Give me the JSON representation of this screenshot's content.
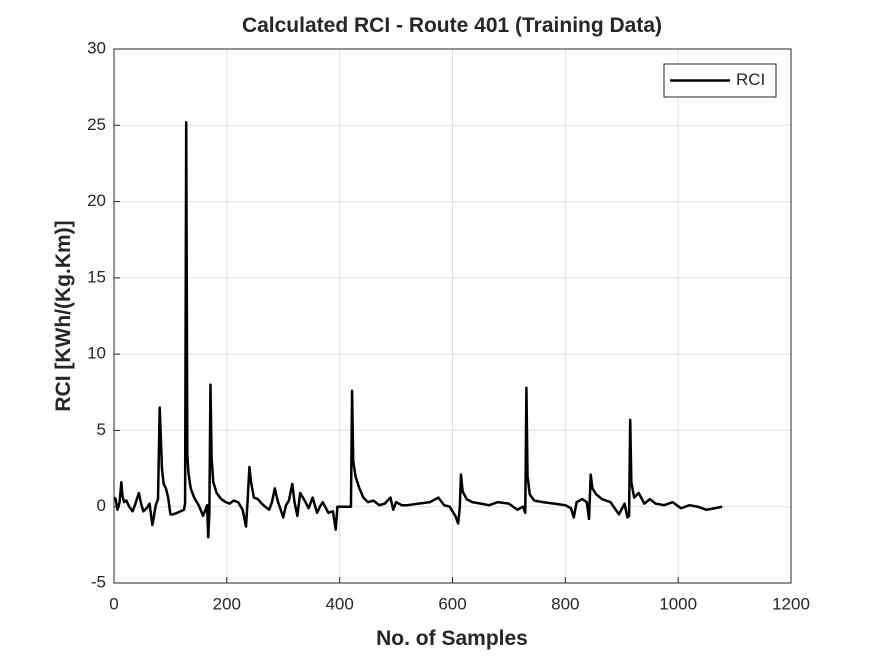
{
  "chart_data": {
    "type": "line",
    "title": "Calculated RCI - Route 401 (Training Data)",
    "x_label": "No. of Samples",
    "y_label": "RCI [KWh/(Kg.Km)]",
    "xlim": [
      0,
      1200
    ],
    "xticks": [
      0,
      200,
      400,
      600,
      800,
      1000,
      1200
    ],
    "ylim": [
      -5,
      30
    ],
    "yticks": [
      -5,
      0,
      5,
      10,
      15,
      20,
      25,
      30
    ],
    "grid": true,
    "legend_position": "top-right",
    "x": [
      0,
      3,
      6,
      10,
      13,
      15,
      18,
      22,
      27,
      33,
      38,
      44,
      48,
      52,
      58,
      63,
      68,
      70,
      74,
      78,
      81,
      83,
      85,
      88,
      92,
      96,
      100,
      105,
      112,
      118,
      124,
      126,
      128,
      130,
      132,
      136,
      142,
      150,
      158,
      162,
      165,
      167,
      169,
      171,
      173,
      176,
      182,
      190,
      198,
      205,
      212,
      220,
      228,
      234,
      237,
      240,
      243,
      248,
      255,
      262,
      268,
      275,
      280,
      285,
      290,
      300,
      305,
      310,
      316,
      320,
      325,
      330,
      338,
      345,
      352,
      360,
      365,
      370,
      380,
      388,
      393,
      396,
      400,
      405,
      412,
      418,
      420,
      422,
      424,
      428,
      435,
      442,
      450,
      460,
      470,
      480,
      490,
      495,
      500,
      510,
      520,
      540,
      560,
      575,
      585,
      595,
      605,
      610,
      613,
      615,
      618,
      625,
      635,
      650,
      665,
      680,
      700,
      715,
      725,
      729,
      731,
      733,
      737,
      745,
      760,
      780,
      800,
      810,
      815,
      820,
      830,
      838,
      842,
      845,
      848,
      855,
      865,
      880,
      895,
      905,
      910,
      913,
      915,
      917,
      922,
      930,
      940,
      950,
      960,
      975,
      990,
      1005,
      1020,
      1035,
      1050,
      1065,
      1078
    ],
    "series": [
      {
        "name": "RCI",
        "color": "#000000",
        "values": [
          0.6,
          0.5,
          -0.2,
          0.3,
          1.6,
          0.7,
          0.3,
          0.4,
          0,
          -0.3,
          0.2,
          0.9,
          0.2,
          -0.3,
          -0.1,
          0.2,
          -1.2,
          -0.8,
          0.1,
          0.5,
          6.5,
          4.5,
          2.5,
          1.5,
          1.2,
          0.6,
          -0.5,
          -0.5,
          -0.4,
          -0.3,
          -0.2,
          0.2,
          25.2,
          3.4,
          2.2,
          1.2,
          0.6,
          0.1,
          -0.6,
          -0.2,
          0.1,
          -2.0,
          -0.5,
          8.0,
          3.2,
          1.6,
          0.9,
          0.5,
          0.3,
          0.2,
          0.4,
          0.3,
          -0.2,
          -1.3,
          0.5,
          2.6,
          1.6,
          0.6,
          0.5,
          0.2,
          0,
          -0.2,
          0.3,
          1.2,
          0.4,
          -0.7,
          0.1,
          0.4,
          1.5,
          0.3,
          -0.6,
          0.9,
          0.4,
          -0.1,
          0.6,
          -0.4,
          0,
          0.3,
          -0.4,
          -0.3,
          -1.5,
          0,
          0,
          0,
          0,
          0,
          0,
          7.6,
          3.0,
          2.0,
          1.2,
          0.6,
          0.3,
          0.4,
          0.1,
          0.2,
          0.6,
          -0.2,
          0.3,
          0.1,
          0.1,
          0.2,
          0.3,
          0.6,
          0.1,
          0,
          -0.6,
          -1.1,
          0,
          2.1,
          1.0,
          0.5,
          0.3,
          0.2,
          0.1,
          0.3,
          0.2,
          -0.2,
          0,
          -0.4,
          7.8,
          2.0,
          0.8,
          0.4,
          0.3,
          0.2,
          0.1,
          -0.1,
          -0.7,
          0.3,
          0.5,
          0.3,
          -0.8,
          2.1,
          1.2,
          0.8,
          0.5,
          0.3,
          -0.5,
          0.2,
          -0.7,
          -0.6,
          5.7,
          1.6,
          0.6,
          0.9,
          0.2,
          0.5,
          0.2,
          0.1,
          0.3,
          -0.1,
          0.1,
          0,
          -0.2,
          -0.1,
          0
        ]
      }
    ]
  }
}
